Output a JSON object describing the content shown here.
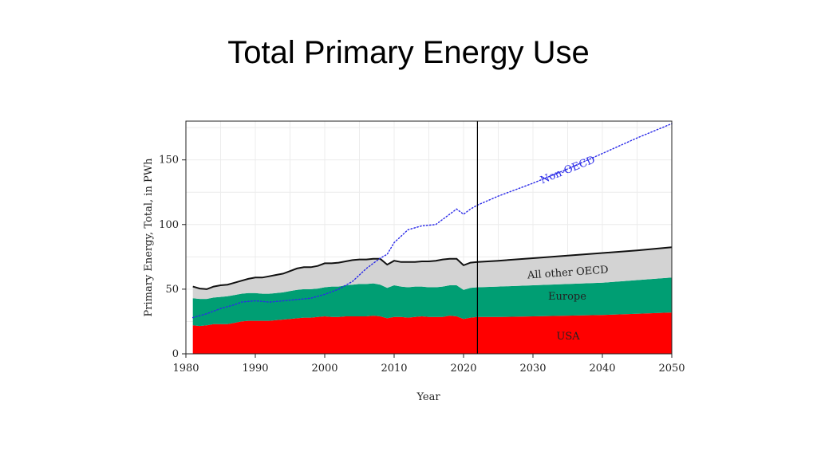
{
  "slide": {
    "title": "Total Primary Energy Use"
  },
  "chart_data": {
    "type": "area",
    "xlabel": "Year",
    "ylabel": "Primary Energy, Total, in PWh",
    "xlim": [
      1980,
      2050
    ],
    "ylim": [
      0,
      180
    ],
    "xticks": [
      1980,
      1990,
      2000,
      2010,
      2020,
      2030,
      2040,
      2050
    ],
    "yticks": [
      0,
      50,
      100,
      150
    ],
    "grid": true,
    "projection_start": 2022,
    "x": [
      1981,
      1982,
      1983,
      1984,
      1985,
      1986,
      1987,
      1988,
      1989,
      1990,
      1991,
      1992,
      1993,
      1994,
      1995,
      1996,
      1997,
      1998,
      1999,
      2000,
      2001,
      2002,
      2003,
      2004,
      2005,
      2006,
      2007,
      2008,
      2009,
      2010,
      2011,
      2012,
      2013,
      2014,
      2015,
      2016,
      2017,
      2018,
      2019,
      2020,
      2021,
      2022,
      2025,
      2030,
      2035,
      2040,
      2045,
      2050
    ],
    "stacked_series": [
      {
        "name": "USA",
        "color": "#ff0000",
        "values": [
          22,
          21.5,
          22,
          23,
          23,
          23,
          24,
          25,
          25.5,
          25.5,
          25.5,
          25.5,
          26,
          26.5,
          27,
          27.5,
          28,
          28,
          28.5,
          29,
          28.5,
          28.5,
          29,
          29,
          29,
          29,
          29.5,
          29,
          27.5,
          28.5,
          28.5,
          28,
          28.5,
          29,
          28.5,
          28.5,
          28.5,
          29.5,
          29,
          27,
          28,
          28.5,
          28.5,
          29,
          29.5,
          30,
          31,
          32
        ]
      },
      {
        "name": "Europe",
        "color": "#009e73",
        "values": [
          21,
          21,
          20.5,
          20.5,
          21,
          21.5,
          21.5,
          21.5,
          21.5,
          21.5,
          21,
          21,
          21,
          21,
          21.5,
          22,
          22,
          22,
          22,
          22.5,
          23.5,
          23.5,
          24,
          24.5,
          25,
          25,
          25,
          24.5,
          23.5,
          24.5,
          23.5,
          23.5,
          23.5,
          23,
          23,
          23,
          23.5,
          23.5,
          24,
          22.5,
          23,
          23,
          23.5,
          24,
          24.5,
          25,
          26,
          27
        ]
      },
      {
        "name": "All other OECD",
        "color": "#d3d3d3",
        "values": [
          9,
          8,
          7.5,
          8.5,
          9,
          9,
          9.5,
          10,
          11,
          12,
          12.5,
          13.5,
          14,
          14.5,
          15.5,
          16.5,
          17,
          17,
          17.5,
          18.5,
          18,
          18.5,
          18.5,
          19,
          19,
          19,
          19,
          20,
          18,
          19,
          19,
          19.5,
          19,
          19.5,
          20,
          20.5,
          21,
          20.5,
          20.5,
          19,
          19.5,
          19.5,
          20,
          21,
          22,
          23,
          23,
          23.5
        ]
      }
    ],
    "line_series": [
      {
        "name": "Non-OECD",
        "color": "#2a2ae8",
        "style": "dotted",
        "x": [
          1981,
          1983,
          1985,
          1987,
          1988,
          1990,
          1992,
          1994,
          1996,
          1998,
          2000,
          2002,
          2004,
          2006,
          2008,
          2009,
          2010,
          2012,
          2014,
          2016,
          2018,
          2019,
          2020,
          2021,
          2022,
          2025,
          2030,
          2035,
          2040,
          2045,
          2050
        ],
        "values": [
          28,
          31,
          35,
          38,
          40,
          41,
          40,
          41,
          42,
          43,
          46,
          50,
          56,
          66,
          74,
          77,
          86,
          96,
          99,
          100,
          108,
          112,
          108,
          112,
          115,
          122,
          132,
          143,
          155,
          167,
          178
        ]
      }
    ],
    "annotations": [
      "Non-OECD",
      "All other OECD",
      "Europe",
      "USA"
    ]
  }
}
